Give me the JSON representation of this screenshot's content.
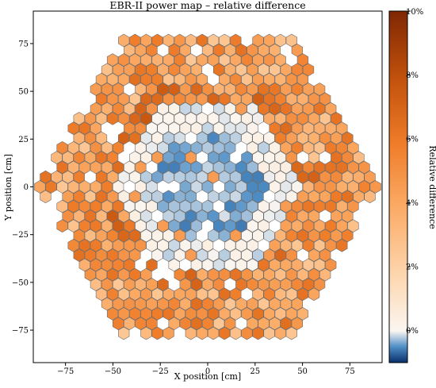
{
  "chart_data": {
    "type": "heatmap",
    "title": "EBR-II power map – relative difference",
    "xlabel": "X position [cm]",
    "ylabel": "Y position [cm]",
    "xlim": [
      -92,
      92
    ],
    "ylim": [
      -92,
      92
    ],
    "x_ticks": [
      -75,
      -50,
      -25,
      0,
      25,
      50,
      75
    ],
    "y_ticks": [
      -75,
      -50,
      -25,
      0,
      25,
      50,
      75
    ],
    "x_tick_labels": [
      "−75",
      "−50",
      "−25",
      "0",
      "25",
      "50",
      "75"
    ],
    "y_tick_labels": [
      "−75",
      "−50",
      "−25",
      "0",
      "25",
      "50",
      "75"
    ],
    "grid": false,
    "colorbar": {
      "label": "Relative difference",
      "min": -0.01,
      "max": 0.1,
      "ticks": [
        0,
        0.02,
        0.04,
        0.06,
        0.08,
        0.1
      ],
      "tick_labels": [
        "0%",
        "2%",
        "4%",
        "6%",
        "8%",
        "10%"
      ]
    },
    "hex_pitch_cm": 5.9,
    "inner_region": {
      "max_ring": 8,
      "value_range": [
        -0.008,
        0.005
      ]
    },
    "outer_region": {
      "min_ring": 9,
      "max_ring": 15,
      "value_range": [
        0.025,
        0.065
      ]
    },
    "colors": {
      "high": "#7f2704",
      "mid": "#f2843e",
      "zero": "#fbf6f1",
      "low": "#08306b"
    }
  }
}
